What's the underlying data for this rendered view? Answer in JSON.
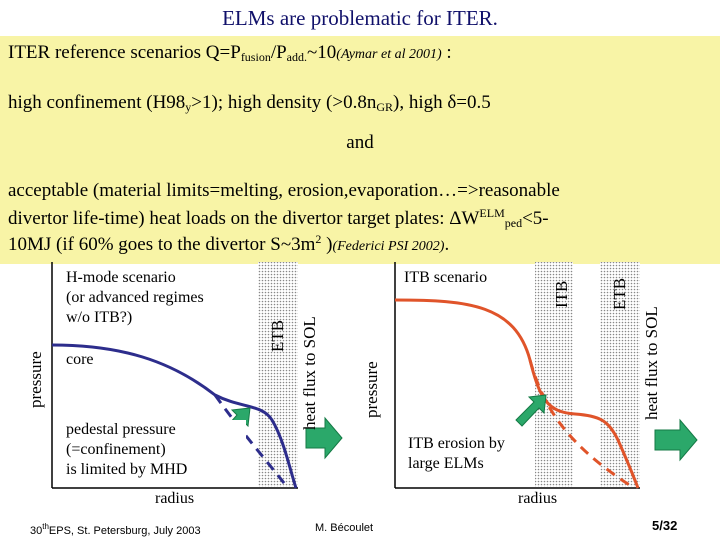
{
  "header": {
    "title": "ELMs are problematic for ITER."
  },
  "text": {
    "l1_main": "ITER reference scenarios Q=P",
    "l1_sub1": "fusion",
    "l1_mid": "/P",
    "l1_sub2": "add.",
    "l1_tail": "~10",
    "l1_cite": "(Aymar et al 2001)",
    "l1_colon": " :",
    "l2_a": "high confinement (H98",
    "l2_sub": "y",
    "l2_b": ">1); high density (>0.8n",
    "l2_sub2": "GR",
    "l2_c": "), high δ=0.5",
    "and": "and",
    "l3": "acceptable (material limits=melting, erosion,evaporation…=>reasonable",
    "l4_a": "divertor life-time) heat loads on the divertor target plates: ΔW",
    "l4_sup": "ELM",
    "l4_sub": "ped",
    "l4_b": "<5-",
    "l5_a": "10MJ (if 60% goes to the divertor S~3m",
    "l5_sup": "2",
    "l5_b": " )",
    "l5_cite": "(Federici PSI 2002)",
    "l5_dot": "."
  },
  "left_plot": {
    "box_text_1": "H-mode scenario",
    "box_text_2": "(or advanced regimes",
    "box_text_3": "w/o ITB?)",
    "core": "core",
    "ped_1": "pedestal pressure",
    "ped_2": "(=confinement)",
    "ped_3": "is limited by MHD",
    "radius": "radius",
    "ylabel": "pressure",
    "etb": "ETB",
    "heat": "heat flux to SOL"
  },
  "right_plot": {
    "scenario": "ITB scenario",
    "erosion_1": "ITB erosion by",
    "erosion_2": "large ELMs",
    "radius": "radius",
    "ylabel": "pressure",
    "itb": "ITB",
    "etb": "ETB",
    "heat": "heat flux to SOL"
  },
  "footer": {
    "conf_sup": "th",
    "conf_a": "30",
    "conf_b": "EPS, St. Petersburg, July 2003",
    "author": "M. Bécoulet",
    "page": "5/32"
  },
  "colors": {
    "title": "#10106a",
    "band": "#f8f4a6",
    "blue_curve": "#2d2d8c",
    "red_curve": "#e0542a",
    "arrow": "#2ba86a"
  }
}
